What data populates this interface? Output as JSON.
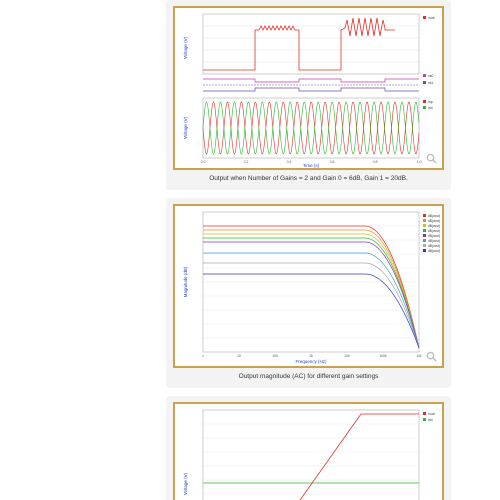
{
  "panels": [
    {
      "caption": "Output when Number of Gains = 2 and Gain 0 = 6dB, Gain 1 = 20dB.",
      "top_ylabel": "Voltage (V)",
      "bottom_ylabel": "Voltage (V)",
      "xlabel": "Time (s)",
      "top_legend": [
        "vout"
      ],
      "mid_legend": [
        "vs0",
        "vs1"
      ],
      "bottom_legend": [
        "inp",
        "inn"
      ],
      "colors": {
        "red": "#e0302a",
        "green": "#2db82d",
        "magenta": "#c43ca8",
        "purple": "#6a4fb0"
      }
    },
    {
      "caption": "Output magnitude (AC) for different gain settings",
      "ylabel": "Magnitude (dB)",
      "xlabel": "Frequency (Hz)",
      "legend": [
        "dB(vout)",
        "dB(vout)",
        "dB(vout)",
        "dB(vout)",
        "dB(vout)",
        "dB(vout)",
        "dB(vout)",
        "dB(vout)"
      ],
      "series_colors": [
        "#e0302a",
        "#f08a20",
        "#c9c22a",
        "#2db82d",
        "#7b3fb0",
        "#4aa0d6",
        "#aaaaaa",
        "#2a40c8"
      ]
    },
    {
      "ylabel": "Voltage (V)",
      "legend": [
        "vout",
        "inn"
      ],
      "colors": {
        "red": "#e0302a",
        "green": "#2db82d"
      }
    }
  ]
}
